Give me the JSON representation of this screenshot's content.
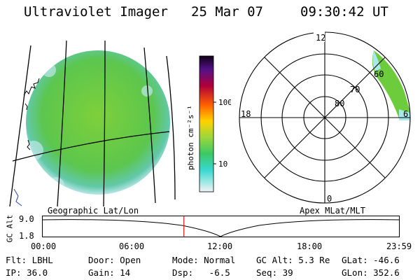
{
  "header": {
    "title": "Ultraviolet Imager",
    "date": "25 Mar 07",
    "time": "09:30:42 UT"
  },
  "colorbar": {
    "label": "photon cm⁻²s⁻¹",
    "ticks": [
      "100",
      "10"
    ]
  },
  "polar": {
    "ring_labels": [
      "80",
      "70",
      "60"
    ],
    "mlt_labels": {
      "top": "12",
      "left": "18",
      "right": "6",
      "bottom": "0"
    }
  },
  "timeline": {
    "left_title": "Geographic Lat/Lon",
    "right_title": "Apex MLat/MLT",
    "axis_label": "GC Alt",
    "y_ticks": [
      "9.0",
      "1.8"
    ],
    "x_ticks": [
      "00:00",
      "06:00",
      "12:00",
      "18:00",
      "23:59"
    ],
    "current_time_hours": 9.51
  },
  "info": {
    "flt": "Flt: LBHL",
    "ip": "IP: 36.0",
    "door": "Door: Open",
    "gain": "Gain: 14",
    "mode": "Mode: Normal",
    "dsp": "Dsp:   -6.5",
    "gcalt": "GC Alt: 5.3 Re",
    "seq": "Seq: 39",
    "glat": "GLat: -46.6",
    "glon": "GLon: 352.6"
  },
  "colors": {
    "auroral_green": "#6ccc3c",
    "edge_cyan": "#a8e8e8",
    "marker_red": "#e02020"
  }
}
